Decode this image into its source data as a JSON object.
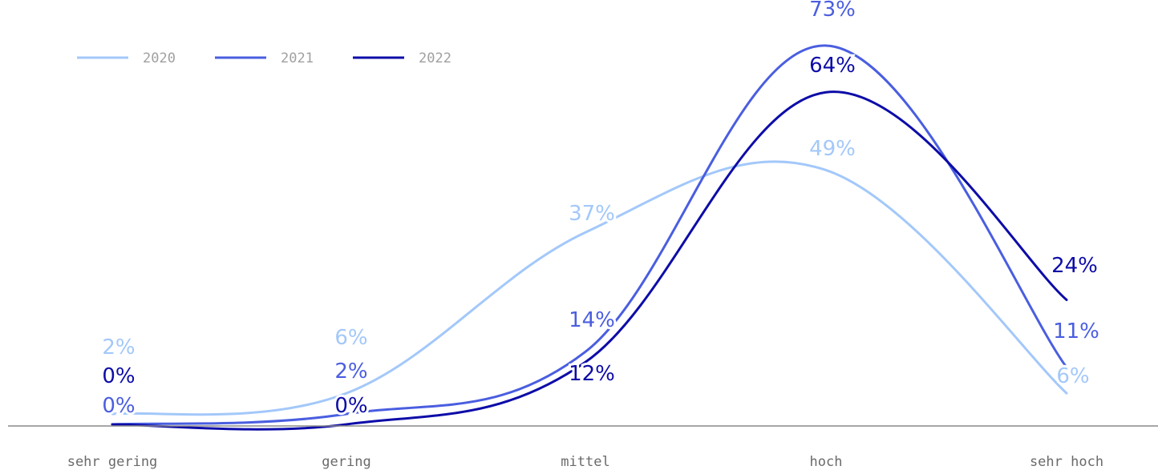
{
  "chart_data": {
    "type": "line",
    "title": "",
    "xlabel": "",
    "ylabel": "",
    "categories": [
      "sehr gering",
      "gering",
      "mittel",
      "hoch",
      "sehr hoch"
    ],
    "ylim": [
      0,
      80
    ],
    "value_suffix": "%",
    "legend_position": "top-left",
    "grid": false,
    "series": [
      {
        "name": "2020",
        "color": "#a3c8fa",
        "values": [
          2,
          6,
          37,
          49,
          6
        ]
      },
      {
        "name": "2021",
        "color": "#4a5ee0",
        "values": [
          0,
          2,
          14,
          73,
          11
        ]
      },
      {
        "name": "2022",
        "color": "#0d0ca8",
        "values": [
          0,
          0,
          12,
          64,
          24
        ]
      }
    ]
  }
}
